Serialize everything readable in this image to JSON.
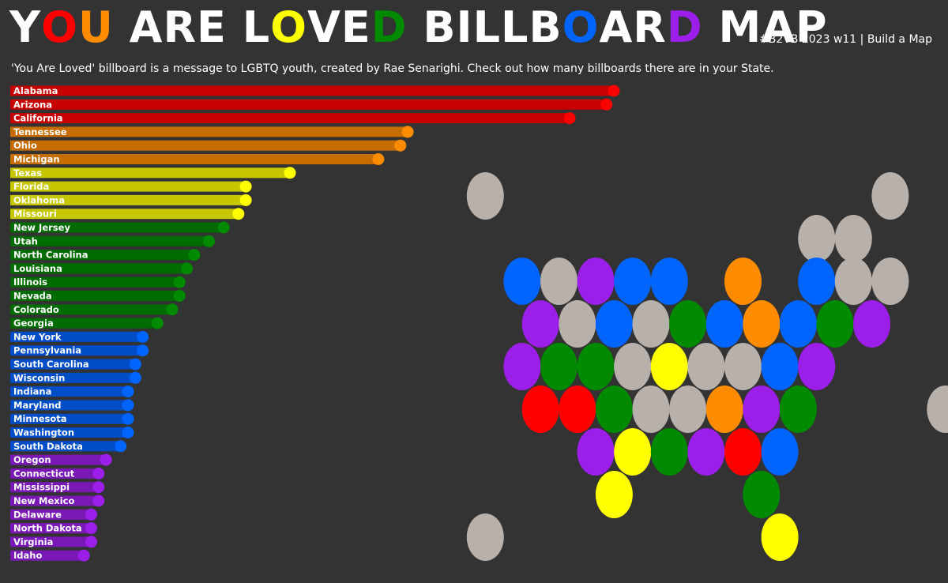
{
  "header": {
    "title_parts": [
      {
        "text": "Y",
        "color": "#ffffff"
      },
      {
        "text": "O",
        "color": "#ff0000"
      },
      {
        "text": "U",
        "color": "#ff8c00"
      },
      {
        "text": " ARE L",
        "color": "#ffffff"
      },
      {
        "text": "O",
        "color": "#ffff00"
      },
      {
        "text": "V",
        "color": "#ffffff"
      },
      {
        "text": "E",
        "color": "#ffffff"
      },
      {
        "text": "D",
        "color": "#008a00"
      },
      {
        "text": " BILLB",
        "color": "#ffffff"
      },
      {
        "text": "O",
        "color": "#0064ff"
      },
      {
        "text": "AR",
        "color": "#ffffff"
      },
      {
        "text": "D",
        "color": "#9b1fe8"
      },
      {
        "text": " MAP",
        "color": "#ffffff"
      }
    ],
    "tag": "#B2VB 2023 w11 | Build a Map",
    "subtitle": "'You Are Loved' billboard is a message to LGBTQ youth, created by Rae Senarighi. Check out how many billboards there are in your State."
  },
  "chart_data": [
    {
      "type": "bar",
      "orientation": "horizontal",
      "categories": [
        "Alabama",
        "Arizona",
        "California",
        "Tennessee",
        "Ohio",
        "Michigan",
        "Texas",
        "Florida",
        "Oklahoma",
        "Missouri",
        "New Jersey",
        "Utah",
        "North Carolina",
        "Louisiana",
        "Illinois",
        "Nevada",
        "Colorado",
        "Georgia",
        "New York",
        "Pennsylvania",
        "South Carolina",
        "Wisconsin",
        "Indiana",
        "Maryland",
        "Minnesota",
        "Washington",
        "South Dakota",
        "Oregon",
        "Connecticut",
        "Mississippi",
        "New Mexico",
        "Delaware",
        "North Dakota",
        "Virginia",
        "Idaho"
      ],
      "values": [
        41,
        40.5,
        38,
        27,
        26.5,
        25,
        19,
        16,
        16,
        15.5,
        14.5,
        13.5,
        12.5,
        12,
        11.5,
        11.5,
        11,
        10,
        9,
        9,
        8.5,
        8.5,
        8,
        8,
        8,
        8,
        7.5,
        6.5,
        6,
        6,
        6,
        5.5,
        5.5,
        5.5,
        5
      ],
      "colors": [
        "#ff0000",
        "#ff0000",
        "#ff0000",
        "#ff8c00",
        "#ff8c00",
        "#ff8c00",
        "#ffff00",
        "#ffff00",
        "#ffff00",
        "#ffff00",
        "#008a00",
        "#008a00",
        "#008a00",
        "#008a00",
        "#008a00",
        "#008a00",
        "#008a00",
        "#008a00",
        "#0064ff",
        "#0064ff",
        "#0064ff",
        "#0064ff",
        "#0064ff",
        "#0064ff",
        "#0064ff",
        "#0064ff",
        "#0064ff",
        "#9b1fe8",
        "#9b1fe8",
        "#9b1fe8",
        "#9b1fe8",
        "#9b1fe8",
        "#9b1fe8",
        "#9b1fe8",
        "#9b1fe8"
      ],
      "xlim": [
        0,
        41
      ],
      "axis_labels_shown": false
    },
    {
      "type": "tile_map",
      "unlabeled": true,
      "palette": {
        "red": "#ff0000",
        "orange": "#ff8c00",
        "yellow": "#ffff00",
        "green": "#008a00",
        "blue": "#0064ff",
        "purple": "#9b1fe8",
        "none": "#b8b0ab"
      },
      "tiles": [
        {
          "col": 0.5,
          "row": -2,
          "color": "none"
        },
        {
          "col": 11.5,
          "row": -2,
          "color": "none"
        },
        {
          "col": 9.5,
          "row": -1,
          "color": "none"
        },
        {
          "col": 10.5,
          "row": -1,
          "color": "none"
        },
        {
          "col": 1.5,
          "row": 0,
          "color": "blue"
        },
        {
          "col": 2.5,
          "row": 0,
          "color": "none"
        },
        {
          "col": 3.5,
          "row": 0,
          "color": "purple"
        },
        {
          "col": 4.5,
          "row": 0,
          "color": "blue"
        },
        {
          "col": 5.5,
          "row": 0,
          "color": "blue"
        },
        {
          "col": 7.5,
          "row": 0,
          "color": "orange"
        },
        {
          "col": 9.5,
          "row": 0,
          "color": "blue"
        },
        {
          "col": 10.5,
          "row": 0,
          "color": "none"
        },
        {
          "col": 11.5,
          "row": 0,
          "color": "none"
        },
        {
          "col": 2,
          "row": 1,
          "color": "purple"
        },
        {
          "col": 3,
          "row": 1,
          "color": "none"
        },
        {
          "col": 4,
          "row": 1,
          "color": "blue"
        },
        {
          "col": 5,
          "row": 1,
          "color": "none"
        },
        {
          "col": 6,
          "row": 1,
          "color": "green"
        },
        {
          "col": 7,
          "row": 1,
          "color": "blue"
        },
        {
          "col": 8,
          "row": 1,
          "color": "orange"
        },
        {
          "col": 9,
          "row": 1,
          "color": "blue"
        },
        {
          "col": 10,
          "row": 1,
          "color": "green"
        },
        {
          "col": 11,
          "row": 1,
          "color": "purple"
        },
        {
          "col": 1.5,
          "row": 2,
          "color": "purple"
        },
        {
          "col": 2.5,
          "row": 2,
          "color": "green"
        },
        {
          "col": 3.5,
          "row": 2,
          "color": "green"
        },
        {
          "col": 4.5,
          "row": 2,
          "color": "none"
        },
        {
          "col": 5.5,
          "row": 2,
          "color": "yellow"
        },
        {
          "col": 6.5,
          "row": 2,
          "color": "none"
        },
        {
          "col": 7.5,
          "row": 2,
          "color": "none"
        },
        {
          "col": 8.5,
          "row": 2,
          "color": "blue"
        },
        {
          "col": 9.5,
          "row": 2,
          "color": "purple"
        },
        {
          "col": 2,
          "row": 3,
          "color": "red"
        },
        {
          "col": 3,
          "row": 3,
          "color": "red"
        },
        {
          "col": 4,
          "row": 3,
          "color": "green"
        },
        {
          "col": 5,
          "row": 3,
          "color": "none"
        },
        {
          "col": 6,
          "row": 3,
          "color": "none"
        },
        {
          "col": 7,
          "row": 3,
          "color": "orange"
        },
        {
          "col": 8,
          "row": 3,
          "color": "purple"
        },
        {
          "col": 9,
          "row": 3,
          "color": "green"
        },
        {
          "col": 13,
          "row": 3,
          "color": "none"
        },
        {
          "col": 3.5,
          "row": 4,
          "color": "purple"
        },
        {
          "col": 4.5,
          "row": 4,
          "color": "yellow"
        },
        {
          "col": 5.5,
          "row": 4,
          "color": "green"
        },
        {
          "col": 6.5,
          "row": 4,
          "color": "purple"
        },
        {
          "col": 7.5,
          "row": 4,
          "color": "red"
        },
        {
          "col": 8.5,
          "row": 4,
          "color": "blue"
        },
        {
          "col": 4,
          "row": 5,
          "color": "yellow"
        },
        {
          "col": 8,
          "row": 5,
          "color": "green"
        },
        {
          "col": 0.5,
          "row": 6,
          "color": "none"
        },
        {
          "col": 8.5,
          "row": 6,
          "color": "yellow"
        }
      ]
    }
  ]
}
